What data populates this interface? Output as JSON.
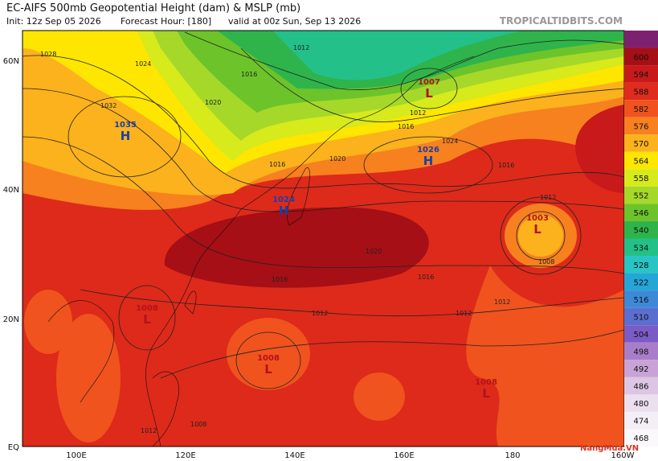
{
  "header": {
    "title": "EC-AIFS 500mb Geopotential Height (dam) & MSLP (mb)",
    "init": "Init: 12z Sep 05 2026",
    "forecast": "Forecast Hour: [180]",
    "valid": "valid at 00z Sun, Sep 13 2026",
    "brand": "TROPICALTIDBITS.COM"
  },
  "map": {
    "lat_labels": [
      "60N",
      "40N",
      "20N",
      "EQ"
    ],
    "lon_labels": [
      "100E",
      "120E",
      "140E",
      "160E",
      "180",
      "160W"
    ],
    "centers": [
      {
        "symbol": "H",
        "pressure": "1035"
      },
      {
        "symbol": "H",
        "pressure": "1026"
      },
      {
        "symbol": "H",
        "pressure": "1024"
      },
      {
        "symbol": "L",
        "pressure": "1007"
      },
      {
        "symbol": "L",
        "pressure": "1003"
      },
      {
        "symbol": "L",
        "pressure": "1008"
      },
      {
        "symbol": "L",
        "pressure": "1008"
      },
      {
        "symbol": "L",
        "pressure": "1008"
      }
    ],
    "isobar_labels": [
      "1028",
      "1024",
      "1032",
      "1012",
      "1016",
      "1020",
      "1020",
      "1016",
      "1012",
      "1016",
      "1012",
      "1008",
      "1012",
      "1016",
      "1024",
      "1016",
      "1020",
      "1016",
      "1012",
      "1008",
      "1012",
      "1012"
    ]
  },
  "legend": {
    "top_color": "#7e2070",
    "labels": [
      600,
      594,
      588,
      582,
      576,
      570,
      564,
      558,
      552,
      546,
      540,
      534,
      528,
      522,
      516,
      510,
      504,
      498,
      492,
      486,
      480,
      474,
      468
    ],
    "colors": [
      "#a50f15",
      "#c81a1a",
      "#e02b1f",
      "#f0531e",
      "#f7801f",
      "#fbb21c",
      "#ffe600",
      "#d6ea1c",
      "#a6d82a",
      "#6cc42a",
      "#2fb44b",
      "#23c08a",
      "#29c4c4",
      "#24a6d6",
      "#3d89d8",
      "#5b6fd0",
      "#7b5bc6",
      "#a97ec9",
      "#c9a3d6",
      "#dcc6e3",
      "#ece0ef",
      "#f4eef6",
      "#faf8fb"
    ]
  },
  "watermark": "NangMua.VN"
}
